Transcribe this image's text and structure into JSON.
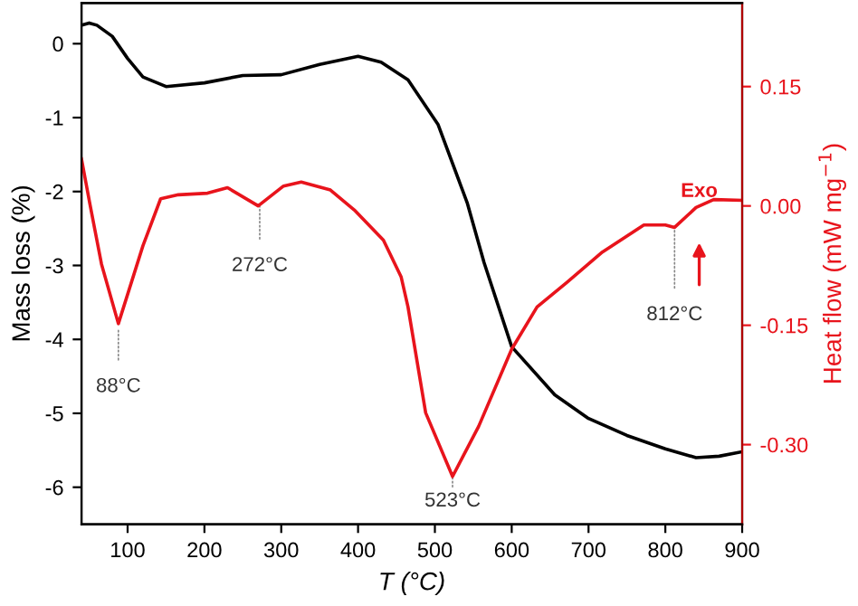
{
  "chart_data": {
    "type": "line",
    "xlabel": "T (°C)",
    "ylabel": "Mass loss (%)",
    "y2label": "Heat flow (mW mg$^{−1}$)",
    "xlim": [
      40,
      900
    ],
    "xticks": [
      100,
      200,
      300,
      400,
      500,
      600,
      700,
      800,
      900
    ],
    "ylim": [
      -6.5,
      0.55
    ],
    "yticks": [
      0,
      -1,
      -2,
      -3,
      -4,
      -5,
      -6
    ],
    "y2lim": [
      -0.4,
      0.255
    ],
    "y2ticks": [
      {
        "value": 0.15,
        "label": "0.15"
      },
      {
        "value": 0,
        "label": "0.00"
      },
      {
        "value": -0.15,
        "label": "-0.15"
      },
      {
        "value": -0.3,
        "label": "-0.30"
      }
    ],
    "grid": false,
    "legend": false,
    "series": [
      {
        "color": "#000000",
        "x": [
          40,
          50,
          60,
          80,
          100,
          120,
          150,
          200,
          250,
          300,
          350,
          400,
          430,
          465,
          504,
          542,
          564,
          600,
          656,
          700,
          750,
          800,
          840,
          870,
          900
        ],
        "values": [
          0.25,
          0.28,
          0.25,
          0.1,
          -0.2,
          -0.45,
          -0.58,
          -0.53,
          -0.43,
          -0.42,
          -0.28,
          -0.17,
          -0.25,
          -0.49,
          -1.09,
          -2.15,
          -2.96,
          -4.1,
          -4.75,
          -5.07,
          -5.3,
          -5.48,
          -5.6,
          -5.58,
          -5.52
        ]
      },
      {
        "color": "#e8141c",
        "axis": "y2",
        "x": [
          40,
          51,
          66,
          88,
          120,
          143,
          166,
          204,
          230,
          270,
          303,
          326,
          364,
          395,
          433,
          456,
          465,
          488,
          523,
          557,
          600,
          633,
          672,
          718,
          772,
          800,
          812,
          840,
          863,
          900
        ],
        "values": [
          0.059,
          0.002,
          -0.073,
          -0.148,
          -0.05,
          0.009,
          0.014,
          0.016,
          0.023,
          0.0,
          0.025,
          0.03,
          0.02,
          -0.005,
          -0.043,
          -0.089,
          -0.127,
          -0.26,
          -0.34,
          -0.277,
          -0.18,
          -0.127,
          -0.096,
          -0.058,
          -0.024,
          -0.024,
          -0.027,
          -0.002,
          0.008,
          0.007
        ]
      }
    ],
    "annotations": [
      {
        "text": "88°C",
        "x": 88,
        "y": -3.86
      },
      {
        "text": "272°C",
        "x": 272,
        "y": -2.19
      },
      {
        "text": "523°C",
        "x": 523,
        "y": -5.85
      },
      {
        "text": "812°C",
        "x": 812,
        "y": -2.48
      },
      "Exo"
    ]
  }
}
